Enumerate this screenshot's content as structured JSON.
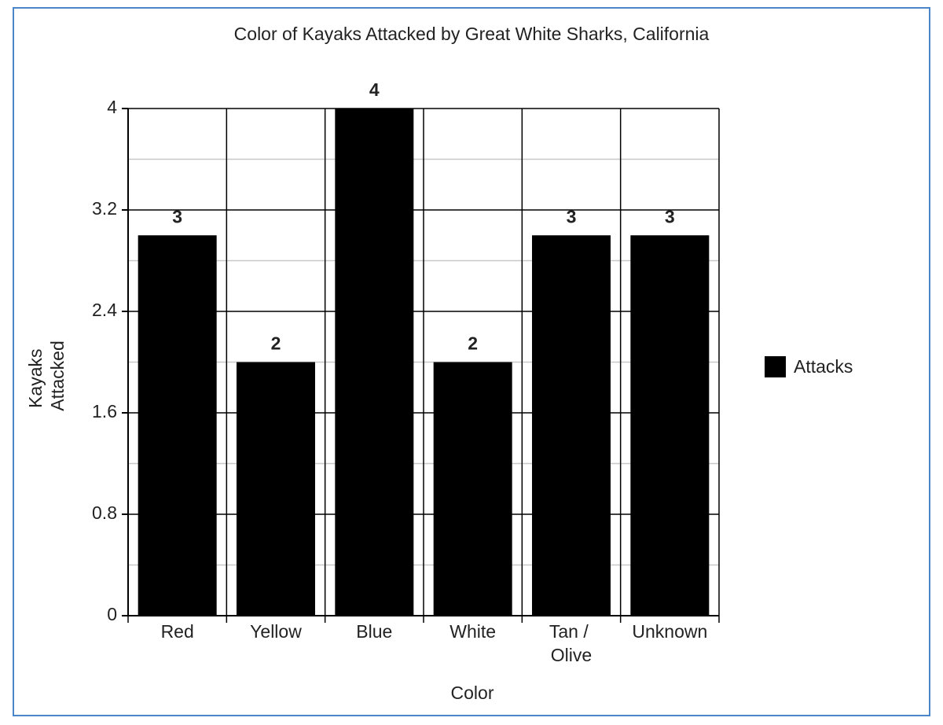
{
  "chart_data": {
    "type": "bar",
    "title": "Color of Kayaks Attacked by Great White Sharks, California",
    "x_label": "Color",
    "y_label": "Kayaks Attacked",
    "categories": [
      "Red",
      "Yellow",
      "Blue",
      "White",
      "Tan / Olive",
      "Unknown"
    ],
    "series": [
      {
        "name": "Attacks",
        "color": "#000000",
        "values": [
          3,
          2,
          4,
          2,
          3,
          3
        ]
      }
    ],
    "ylim": [
      0,
      4
    ],
    "yticks": [
      0,
      0.8,
      1.6,
      2.4,
      3.2,
      4
    ],
    "grid": true,
    "legend": "right"
  }
}
